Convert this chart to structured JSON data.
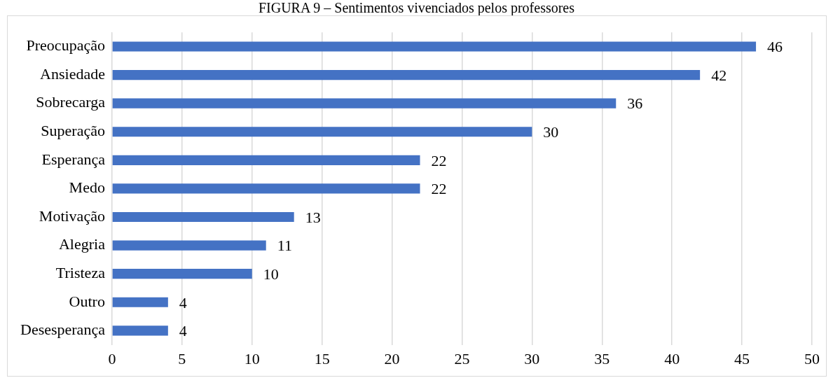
{
  "chart_data": {
    "type": "bar",
    "orientation": "horizontal",
    "title": "FIGURA 9 – Sentimentos vivenciados pelos professores",
    "categories": [
      "Preocupação",
      "Ansiedade",
      "Sobrecarga",
      "Superação",
      "Esperança",
      "Medo",
      "Motivação",
      "Alegria",
      "Tristeza",
      "Outro",
      "Desesperança"
    ],
    "values": [
      46,
      42,
      36,
      30,
      22,
      22,
      13,
      11,
      10,
      4,
      4
    ],
    "color": "#4472c4",
    "xlim": [
      0,
      50
    ],
    "xticks": [
      0,
      5,
      10,
      15,
      20,
      25,
      30,
      35,
      40,
      45,
      50
    ],
    "grid": "x",
    "data_labels": true,
    "legend": false
  }
}
